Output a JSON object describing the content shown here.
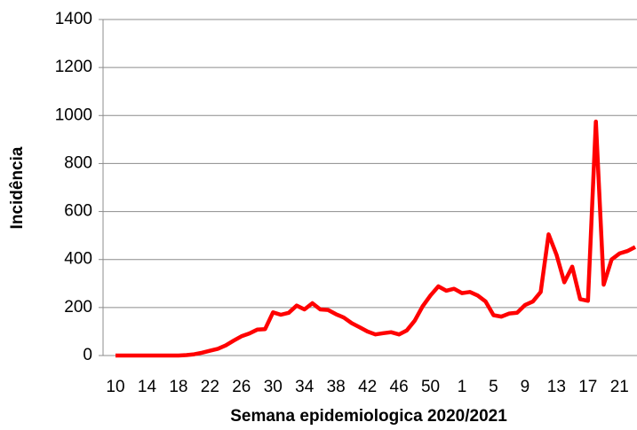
{
  "chart_data": {
    "type": "line",
    "xlabel": "Semana epidemiologica 2020/2021",
    "ylabel": "Incidência",
    "categories": [
      "10",
      null,
      null,
      null,
      "14",
      null,
      null,
      null,
      "18",
      null,
      null,
      null,
      "22",
      null,
      null,
      null,
      "26",
      null,
      null,
      null,
      "30",
      null,
      null,
      null,
      "34",
      null,
      null,
      null,
      "38",
      null,
      null,
      null,
      "42",
      null,
      null,
      null,
      "46",
      null,
      null,
      null,
      "50",
      null,
      null,
      null,
      "1",
      null,
      null,
      null,
      "5",
      null,
      null,
      null,
      "9",
      null,
      null,
      null,
      "13",
      null,
      null,
      null,
      "17",
      null,
      null,
      null,
      "21",
      null,
      null
    ],
    "series": [
      {
        "name": "Incidência",
        "color": "#ff0000",
        "values": [
          0,
          0,
          0,
          0,
          0,
          0,
          0,
          0,
          0,
          2,
          5,
          12,
          20,
          28,
          42,
          62,
          80,
          92,
          108,
          110,
          180,
          170,
          178,
          208,
          192,
          218,
          192,
          190,
          172,
          158,
          135,
          118,
          100,
          88,
          93,
          97,
          88,
          105,
          145,
          205,
          250,
          288,
          270,
          278,
          260,
          265,
          250,
          225,
          168,
          162,
          175,
          178,
          210,
          225,
          265,
          505,
          420,
          305,
          370,
          235,
          228,
          975,
          295,
          400,
          425,
          435,
          452
        ]
      }
    ],
    "ylim": [
      0,
      1400
    ],
    "yticks": [
      0,
      200,
      400,
      600,
      800,
      1000,
      1200,
      1400
    ],
    "grid": true
  }
}
